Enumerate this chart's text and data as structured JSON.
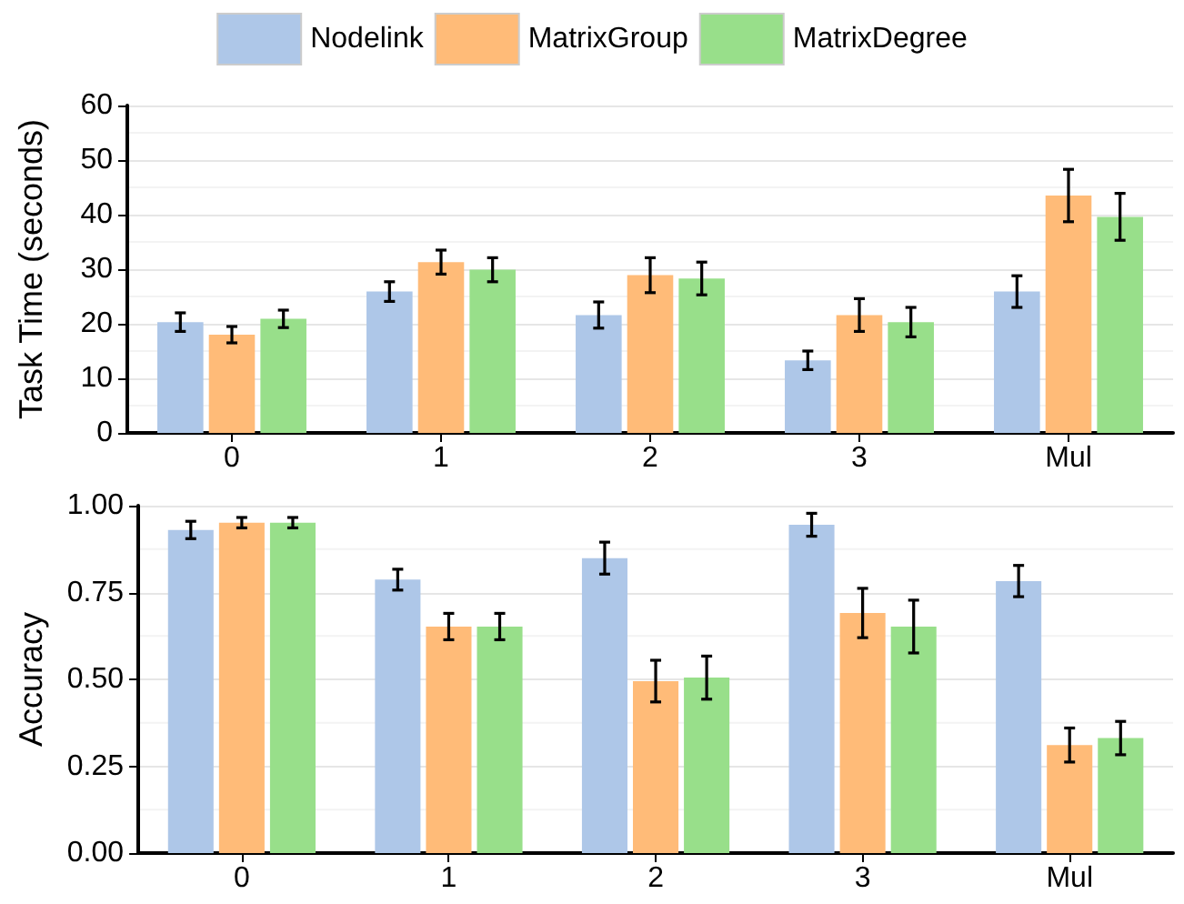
{
  "chart_data": [
    {
      "type": "bar",
      "ylabel": "Task Time (seconds)",
      "categories": [
        "0",
        "1",
        "2",
        "3",
        "Mul"
      ],
      "ylim": [
        0,
        60
      ],
      "yticks": [
        0,
        10,
        20,
        30,
        40,
        50,
        60
      ],
      "grid": "y",
      "legend": "top",
      "series": [
        {
          "name": "Nodelink",
          "color": "#aec7e8",
          "values": [
            20.3,
            25.9,
            21.6,
            13.3,
            25.9
          ],
          "errors": [
            1.7,
            1.8,
            2.4,
            1.7,
            2.9
          ]
        },
        {
          "name": "MatrixGroup",
          "color": "#ffbb78",
          "values": [
            18,
            31.3,
            28.9,
            21.6,
            43.5
          ],
          "errors": [
            1.5,
            2.2,
            3.2,
            3,
            4.8
          ]
        },
        {
          "name": "MatrixDegree",
          "color": "#98df8a",
          "values": [
            20.9,
            29.9,
            28.3,
            20.3,
            39.6
          ],
          "errors": [
            1.6,
            2.2,
            3,
            2.7,
            4.3
          ]
        }
      ]
    },
    {
      "type": "bar",
      "ylabel": "Accuracy",
      "categories": [
        "0",
        "1",
        "2",
        "3",
        "Mul"
      ],
      "ylim": [
        0,
        1
      ],
      "yticks": [
        {
          "value": 0,
          "label": "0.00"
        },
        {
          "value": 0.25,
          "label": "0.25"
        },
        {
          "value": 0.5,
          "label": "0.50"
        },
        {
          "value": 0.75,
          "label": "0.75"
        },
        {
          "value": 1,
          "label": "1.00"
        }
      ],
      "grid": "y",
      "legend": false,
      "series": [
        {
          "color": "#aec7e8",
          "values": [
            0.93,
            0.787,
            0.849,
            0.945,
            0.783
          ],
          "errors": [
            0.025,
            0.03,
            0.046,
            0.033,
            0.045
          ]
        },
        {
          "color": "#ffbb78",
          "values": [
            0.951,
            0.652,
            0.495,
            0.691,
            0.311
          ],
          "errors": [
            0.015,
            0.038,
            0.06,
            0.071,
            0.049
          ]
        },
        {
          "color": "#98df8a",
          "values": [
            0.951,
            0.652,
            0.505,
            0.652,
            0.331
          ],
          "errors": [
            0.015,
            0.038,
            0.062,
            0.076,
            0.048
          ]
        }
      ]
    }
  ]
}
